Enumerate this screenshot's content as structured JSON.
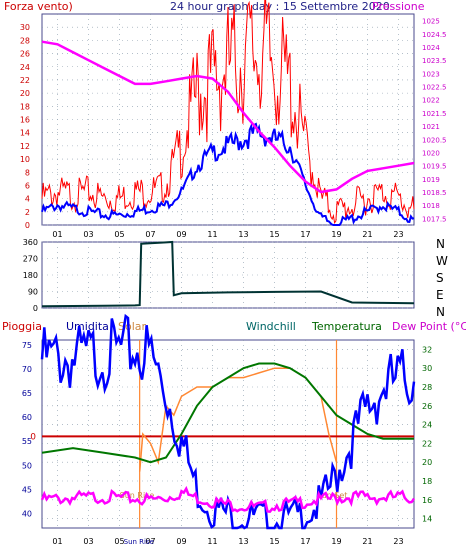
{
  "header": {
    "left_label": "Forza vento)",
    "title": "24 hour graph day : 15 Settembre 2020",
    "right_label": "Pressione"
  },
  "colors": {
    "wind_speed": "#ff0000",
    "wind_avg": "#0000ff",
    "pressure": "#ff00ff",
    "direction": "#003333",
    "humidity": "#0000ff",
    "solar": "#ff8833",
    "temperature": "#007700",
    "rain": "#cc0000",
    "dew_point": "#ff00ff",
    "grid": "#8899aa",
    "frame": "#4a4a8c"
  },
  "bottom_header": {
    "rain": "Pioggia",
    "humidity": "Umidita",
    "solar": "Solar",
    "windchill": "Windchill",
    "temperature": "Temperatura",
    "dew_point": "Dew Point (°C)"
  },
  "annotations": {
    "sunrise": "Sun Rise",
    "sunset": "Sun Set"
  },
  "compass": [
    "N",
    "W",
    "S",
    "E",
    "N"
  ],
  "chart_data": [
    {
      "type": "line",
      "title": "24 hour graph day : 15 Settembre 2020",
      "x_ticks": [
        "01",
        "03",
        "05",
        "07",
        "09",
        "11",
        "13",
        "15",
        "17",
        "19",
        "21",
        "23"
      ],
      "y_left": {
        "label": "Forza vento)",
        "ticks": [
          0,
          2,
          4,
          6,
          8,
          10,
          12,
          14,
          16,
          18,
          20,
          22,
          24,
          26,
          28,
          30
        ],
        "ylim": [
          0,
          32
        ]
      },
      "y_right": {
        "label": "Pressione",
        "ticks": [
          "1017.5",
          "1018",
          "1018.5",
          "1019",
          "1019.5",
          "1020",
          "1020.5",
          "1021",
          "1021.5",
          "1022",
          "1022.5",
          "1023",
          "1023.5",
          "1024",
          "1024.5",
          "1025"
        ],
        "ylim": [
          1017.25,
          1025.25
        ]
      },
      "xlim": [
        0,
        24
      ],
      "series": [
        {
          "key": "gust",
          "axis": "left",
          "x": [
            0,
            1,
            2,
            3,
            4,
            5,
            6,
            7,
            8,
            9,
            10,
            11,
            12,
            13,
            14,
            15,
            16,
            17,
            18,
            19,
            20,
            21,
            22,
            23,
            24
          ],
          "y": [
            4,
            5,
            4.5,
            5,
            4,
            4,
            5,
            5,
            6,
            12,
            20,
            22,
            24,
            25,
            27,
            24,
            21,
            12,
            4,
            2,
            3,
            4,
            5,
            4,
            2
          ]
        },
        {
          "key": "avg",
          "axis": "left",
          "x": [
            0,
            1,
            2,
            3,
            4,
            5,
            6,
            7,
            8,
            9,
            10,
            11,
            12,
            13,
            14,
            15,
            16,
            17,
            18,
            19,
            20,
            21,
            22,
            23,
            24
          ],
          "y": [
            2,
            3,
            2.5,
            2,
            1.5,
            1.5,
            2,
            2.5,
            3,
            5,
            9,
            11,
            12,
            13,
            14,
            13,
            12,
            6,
            1,
            0,
            1,
            2,
            3,
            2,
            0.5
          ]
        },
        {
          "key": "pressure",
          "axis": "right",
          "x": [
            0,
            1,
            2,
            3,
            4,
            5,
            6,
            7,
            8,
            9,
            10,
            11,
            12,
            13,
            14,
            15,
            16,
            17,
            18,
            19,
            20,
            21,
            22,
            23,
            24
          ],
          "y": [
            1024.2,
            1024.1,
            1023.8,
            1023.5,
            1023.2,
            1022.9,
            1022.6,
            1022.6,
            1022.7,
            1022.8,
            1022.9,
            1022.8,
            1022.3,
            1021.5,
            1020.8,
            1020.2,
            1019.5,
            1018.9,
            1018.5,
            1018.6,
            1019,
            1019.3,
            1019.4,
            1019.5,
            1019.6
          ]
        }
      ]
    },
    {
      "type": "line",
      "title": "",
      "y_ticks": [
        "360",
        "270",
        "180",
        "90",
        "0"
      ],
      "ylim": [
        0,
        360
      ],
      "xlim": [
        0,
        24
      ],
      "series": [
        {
          "key": "direction",
          "x": [
            0,
            4,
            6,
            6.3,
            6.4,
            8,
            8.4,
            8.5,
            9,
            12,
            15,
            18,
            20,
            22,
            24
          ],
          "y": [
            10,
            12,
            14,
            16,
            350,
            358,
            360,
            70,
            80,
            85,
            88,
            90,
            30,
            28,
            26
          ]
        }
      ]
    },
    {
      "type": "line",
      "title": "",
      "y_left": {
        "ticks": [
          "75",
          "70",
          "65",
          "60",
          "55",
          "50",
          "45",
          "40"
        ],
        "ylim": [
          37,
          76
        ]
      },
      "y_right": {
        "ticks": [
          "32",
          "30",
          "28",
          "26",
          "24",
          "22",
          "20",
          "18",
          "16",
          "14"
        ],
        "ylim": [
          13,
          33
        ]
      },
      "x_ticks": [
        "01",
        "03",
        "05",
        "07",
        "09",
        "11",
        "13",
        "15",
        "17",
        "19",
        "21",
        "23"
      ],
      "xlim": [
        0,
        24
      ],
      "series": [
        {
          "key": "humidity",
          "axis": "left",
          "x": [
            0,
            2,
            4,
            6,
            7,
            8,
            9,
            10,
            11,
            12,
            14,
            15,
            16,
            17,
            18,
            19,
            20,
            21,
            22,
            23,
            24
          ],
          "y": [
            72,
            72,
            73,
            74,
            73,
            65,
            55,
            45,
            41,
            40,
            39,
            38,
            39,
            40,
            42,
            48,
            55,
            62,
            66,
            68,
            68
          ]
        },
        {
          "key": "temperature",
          "axis": "right",
          "x": [
            0,
            2,
            4,
            6,
            7,
            8,
            9,
            10,
            11,
            12,
            13,
            14,
            15,
            16,
            17,
            18,
            19,
            20,
            21,
            22,
            23,
            24
          ],
          "y": [
            21,
            21.5,
            21,
            20.5,
            20,
            20.5,
            23,
            26,
            28,
            29,
            30,
            30.5,
            30.5,
            30,
            29,
            27,
            25,
            24,
            23,
            22.5,
            22.5,
            22.5
          ]
        },
        {
          "key": "solar",
          "axis": "right",
          "x": [
            6.3,
            6.5,
            7,
            7.5,
            8,
            8.5,
            9,
            10,
            11,
            12,
            13,
            14,
            15,
            16,
            17,
            18,
            18.5,
            19
          ],
          "y": [
            19,
            23,
            22,
            20,
            26,
            25,
            27,
            28,
            28,
            29,
            29,
            29.5,
            30,
            30,
            29,
            27,
            23,
            20
          ]
        },
        {
          "key": "dew_point",
          "axis": "right",
          "x": [
            0,
            2,
            4,
            6,
            7,
            8,
            9,
            10,
            11,
            12,
            13,
            14,
            15,
            16,
            17,
            18,
            19,
            20,
            21,
            22,
            23,
            24
          ],
          "y": [
            16,
            16.2,
            16.3,
            16.1,
            16,
            16.2,
            16.8,
            16.2,
            15.8,
            15.5,
            15.3,
            15.2,
            15.4,
            15.6,
            15.8,
            16,
            16.2,
            16.3,
            16.3,
            16.2,
            16.3,
            16.2
          ]
        },
        {
          "key": "rain",
          "axis": "left",
          "x": [
            0,
            24
          ],
          "y": [
            56,
            56
          ]
        }
      ],
      "vertical_markers": [
        {
          "label": "Sun Rise",
          "x": 6.3
        },
        {
          "label": "Sun Set",
          "x": 19
        }
      ]
    }
  ]
}
